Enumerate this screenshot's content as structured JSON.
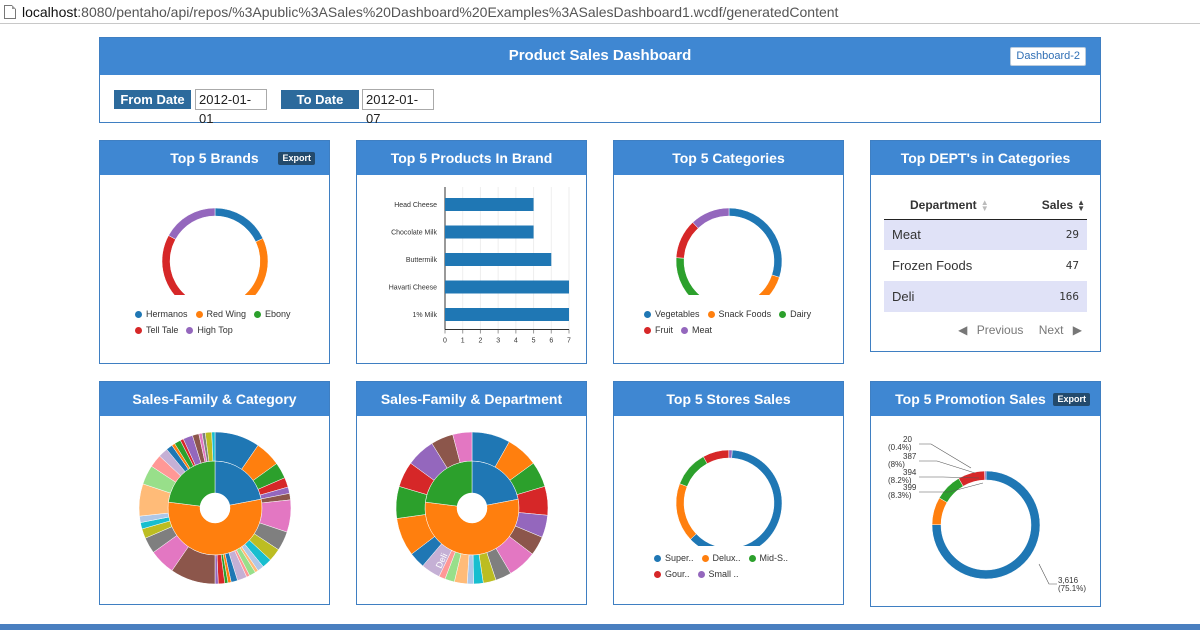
{
  "browser": {
    "url_host": "localhost",
    "url_rest": ":8080/pentaho/api/repos/%3Apublic%3ASales%20Dashboard%20Examples%3ASalesDashboard1.wcdf/generatedContent"
  },
  "header": {
    "title": "Product Sales Dashboard",
    "dashboard2_label": "Dashboard-2",
    "from_label": "From Date",
    "from_value": "2012-01-01",
    "to_label": "To Date",
    "to_value": "2012-01-07"
  },
  "panels": {
    "brands": {
      "title": "Top 5 Brands",
      "export_label": "Export"
    },
    "products": {
      "title": "Top 5 Products In Brand"
    },
    "categories": {
      "title": "Top 5 Categories"
    },
    "departments": {
      "title": "Top DEPT's in Categories",
      "col_department": "Department",
      "col_sales": "Sales",
      "rows": [
        {
          "department": "Meat",
          "sales": "29"
        },
        {
          "department": "Frozen Foods",
          "sales": "47"
        },
        {
          "department": "Deli",
          "sales": "166"
        }
      ],
      "previous_label": "Previous",
      "next_label": "Next"
    },
    "family_category": {
      "title": "Sales-Family & Category"
    },
    "family_department": {
      "title": "Sales-Family & Department",
      "slice_label": "Deli"
    },
    "stores": {
      "title": "Top 5 Stores Sales"
    },
    "promotion": {
      "title": "Top 5 Promotion Sales",
      "export_label": "Export"
    }
  },
  "colors": {
    "blue": "#1f77b4",
    "orange": "#ff7f0e",
    "green": "#2ca02c",
    "red": "#d62728",
    "purple": "#9467bd",
    "header": "#3f87d2"
  },
  "chart_data": [
    {
      "id": "brands",
      "type": "pie",
      "labels": [
        "Hermanos",
        "Red Wing",
        "Ebony",
        "Tell Tale",
        "High Top"
      ],
      "values": [
        18,
        23,
        20,
        22,
        17
      ]
    },
    {
      "id": "products",
      "type": "bar",
      "orientation": "horizontal",
      "categories": [
        "Head Cheese",
        "Chocolate Milk",
        "Buttermilk",
        "Havarti Cheese",
        "1% Milk"
      ],
      "values": [
        5,
        5,
        6,
        7,
        7
      ],
      "xlim": [
        0,
        7
      ],
      "xticks": [
        "0",
        "1",
        "2",
        "3",
        "4",
        "5",
        "6",
        "7"
      ]
    },
    {
      "id": "categories",
      "type": "pie",
      "labels": [
        "Vegetables",
        "Snack Foods",
        "Dairy",
        "Fruit",
        "Meat"
      ],
      "values": [
        30,
        28,
        18,
        12,
        12
      ]
    },
    {
      "id": "stores",
      "type": "pie",
      "labels": [
        "Super..",
        "Delux..",
        "Mid-S..",
        "Gour..",
        "Small .."
      ],
      "values": [
        62,
        18,
        11,
        8,
        1
      ]
    },
    {
      "id": "promotion",
      "type": "pie",
      "annotations": [
        {
          "value": "20",
          "pct": "(0.4%)"
        },
        {
          "value": "387",
          "pct": "(8%)"
        },
        {
          "value": "394",
          "pct": "(8.2%)"
        },
        {
          "value": "399",
          "pct": "(8.3%)"
        },
        {
          "value": "3,616",
          "pct": "(75.1%)"
        }
      ],
      "values": [
        3616,
        399,
        394,
        387,
        20
      ]
    }
  ]
}
